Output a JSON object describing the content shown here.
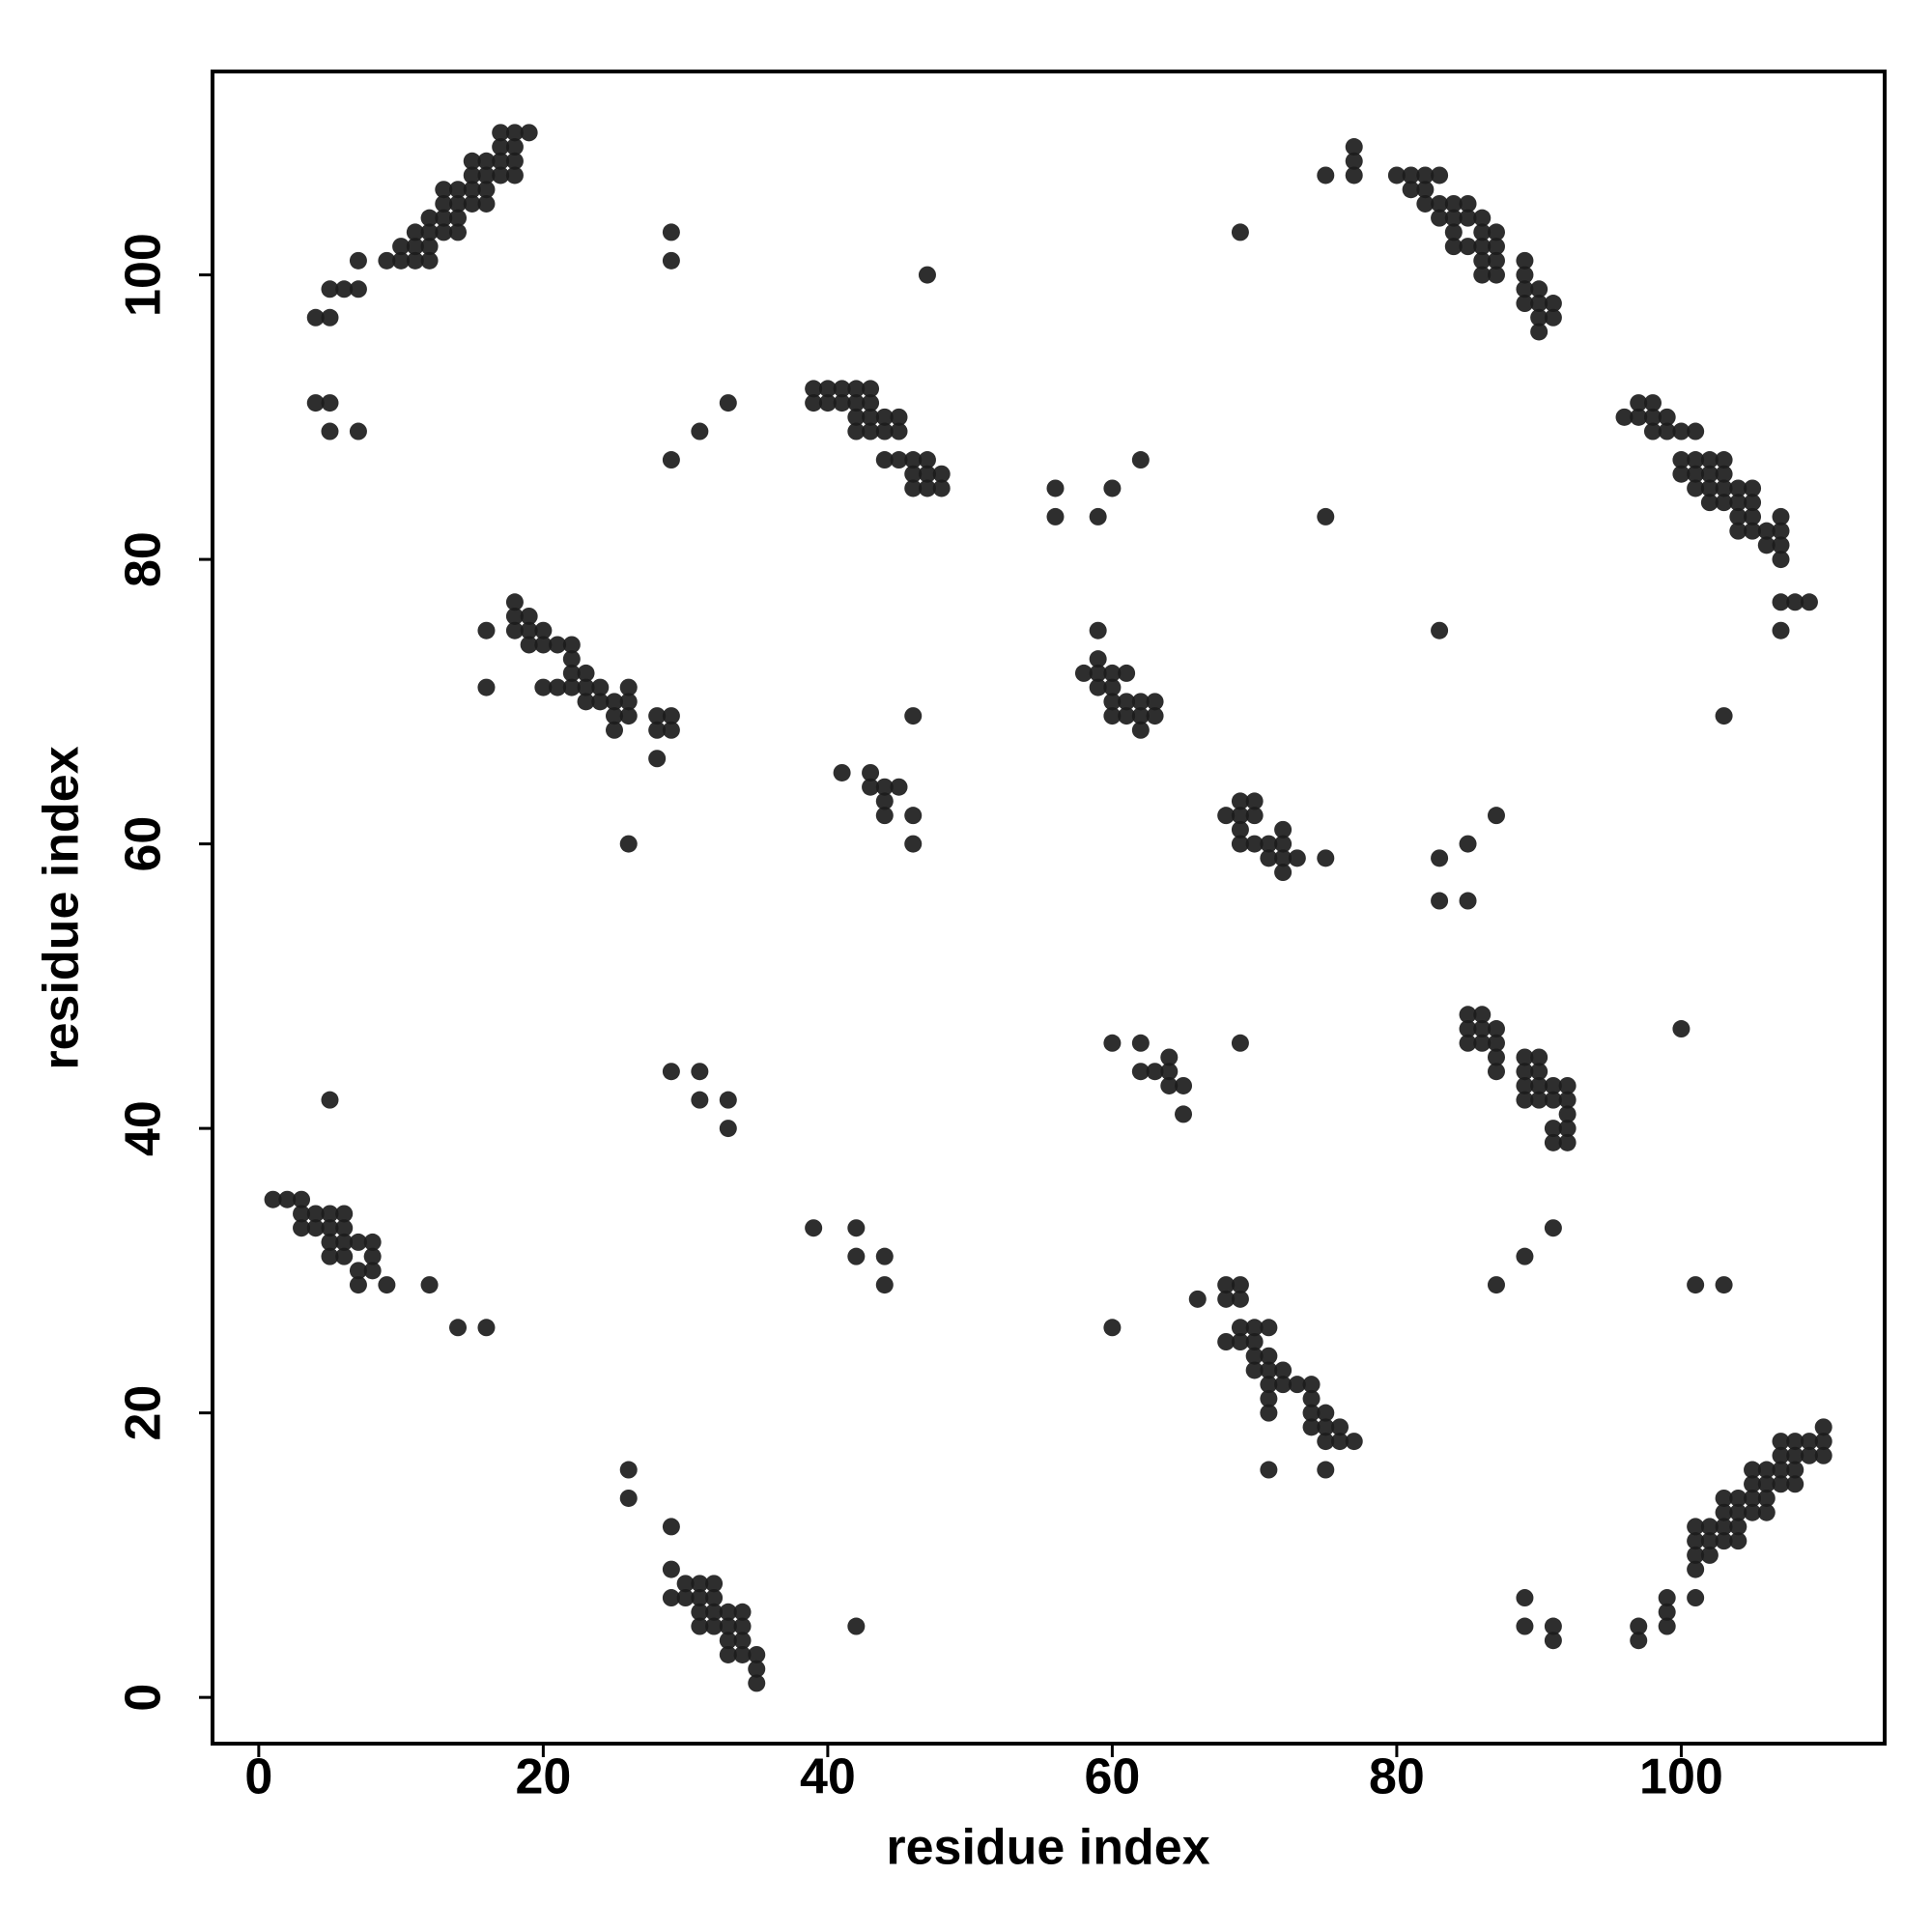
{
  "chart_data": {
    "type": "scatter",
    "x_label": "residue index",
    "y_label": "residue index",
    "xlim": [
      -3.25,
      114.3
    ],
    "ylim": [
      -3.25,
      114.3
    ],
    "xticks": [
      0,
      20,
      40,
      60,
      80,
      100
    ],
    "yticks": [
      0,
      20,
      40,
      60,
      80,
      100
    ],
    "color": "#1c1c1c",
    "grid": false,
    "x": [
      4,
      5,
      5,
      6,
      7,
      7,
      9,
      10,
      10,
      11,
      11,
      11,
      12,
      12,
      12,
      12,
      13,
      13,
      13,
      13,
      14,
      14,
      14,
      14,
      15,
      15,
      15,
      15,
      16,
      16,
      16,
      16,
      17,
      17,
      17,
      17,
      18,
      18,
      18,
      18,
      19,
      4,
      5,
      5,
      7,
      5,
      29,
      29,
      47,
      33,
      31,
      29,
      39,
      39,
      40,
      40,
      41,
      41,
      42,
      42,
      42,
      42,
      43,
      43,
      43,
      43,
      44,
      44,
      44,
      45,
      45,
      45,
      46,
      46,
      46,
      47,
      47,
      47,
      48,
      48,
      56,
      56,
      59,
      60,
      62,
      75,
      69,
      75,
      77,
      77,
      77,
      80,
      81,
      81,
      82,
      82,
      82,
      83,
      83,
      83,
      84,
      84,
      84,
      84,
      85,
      85,
      85,
      86,
      86,
      86,
      86,
      86,
      87,
      87,
      87,
      87,
      89,
      89,
      89,
      89,
      90,
      90,
      90,
      90,
      91,
      91,
      96,
      97,
      97,
      98,
      98,
      98,
      99,
      99,
      100,
      100,
      100,
      101,
      101,
      101,
      101,
      102,
      102,
      102,
      102,
      103,
      103,
      103,
      103,
      104,
      104,
      104,
      104,
      105,
      105,
      105,
      105,
      106,
      106,
      107,
      107,
      107,
      107,
      107,
      107,
      108,
      109,
      83,
      103,
      16,
      16,
      18,
      18,
      18,
      19,
      19,
      19,
      20,
      20,
      20,
      21,
      21,
      22,
      22,
      22,
      22,
      23,
      23,
      23,
      24,
      24,
      25,
      25,
      25,
      26,
      26,
      26,
      28,
      28,
      28,
      29,
      29,
      26,
      46,
      41,
      43,
      43,
      44,
      44,
      44,
      45,
      46,
      46,
      58,
      59,
      59,
      59,
      59,
      60,
      60,
      60,
      60,
      61,
      61,
      61,
      62,
      62,
      62,
      63,
      63,
      68,
      69,
      69,
      69,
      69,
      70,
      70,
      70,
      71,
      71,
      72,
      72,
      72,
      72,
      73,
      75,
      83,
      83,
      85,
      85,
      87,
      100,
      85,
      85,
      85,
      86,
      86,
      86,
      87,
      87,
      87,
      87,
      89,
      89,
      89,
      89,
      90,
      90,
      90,
      90,
      91,
      91,
      91,
      91,
      92,
      92,
      92,
      92,
      92,
      60,
      62,
      62,
      63,
      64,
      64,
      64,
      65,
      65,
      69,
      29,
      31,
      31,
      33,
      33,
      1,
      2,
      3,
      3,
      3,
      4,
      4,
      5,
      5,
      5,
      5,
      6,
      6,
      6,
      6,
      7,
      7,
      7,
      8,
      8,
      8,
      9,
      12,
      14,
      16,
      39,
      42,
      42,
      44,
      44,
      60,
      66,
      68,
      68,
      68,
      69,
      69,
      69,
      69,
      70,
      70,
      70,
      70,
      71,
      71,
      71,
      71,
      71,
      71,
      72,
      72,
      73,
      74,
      74,
      74,
      74,
      75,
      75,
      75,
      76,
      76,
      77,
      71,
      75,
      87,
      89,
      91,
      101,
      103,
      26,
      26,
      29,
      29,
      29,
      30,
      30,
      31,
      31,
      31,
      31,
      32,
      32,
      32,
      32,
      33,
      33,
      33,
      33,
      34,
      34,
      34,
      34,
      35,
      35,
      35,
      42,
      89,
      89,
      91,
      91,
      97,
      97,
      99,
      99,
      99,
      101,
      101,
      101,
      101,
      101,
      102,
      102,
      102,
      103,
      103,
      103,
      103,
      104,
      104,
      104,
      104,
      105,
      105,
      105,
      105,
      106,
      106,
      106,
      106,
      107,
      107,
      107,
      107,
      108,
      108,
      108,
      108,
      109,
      109,
      110,
      110,
      110
    ],
    "values": [
      97,
      97,
      99,
      99,
      99,
      101,
      101,
      101,
      102,
      101,
      102,
      103,
      101,
      102,
      103,
      104,
      103,
      104,
      105,
      106,
      103,
      104,
      105,
      106,
      105,
      106,
      107,
      108,
      105,
      106,
      107,
      108,
      107,
      108,
      109,
      110,
      107,
      108,
      109,
      110,
      110,
      91,
      91,
      89,
      89,
      42,
      103,
      101,
      100,
      91,
      89,
      87,
      92,
      91,
      92,
      91,
      92,
      91,
      92,
      91,
      90,
      89,
      92,
      91,
      90,
      89,
      90,
      89,
      87,
      90,
      89,
      87,
      87,
      86,
      85,
      87,
      86,
      85,
      86,
      85,
      85,
      83,
      83,
      85,
      87,
      83,
      103,
      107,
      109,
      108,
      107,
      107,
      107,
      106,
      107,
      106,
      105,
      107,
      105,
      104,
      105,
      104,
      103,
      102,
      105,
      104,
      102,
      104,
      103,
      102,
      101,
      100,
      103,
      102,
      101,
      100,
      101,
      100,
      99,
      98,
      99,
      98,
      97,
      96,
      98,
      97,
      90,
      91,
      90,
      91,
      90,
      89,
      90,
      89,
      89,
      87,
      86,
      89,
      87,
      86,
      85,
      87,
      86,
      85,
      84,
      87,
      86,
      85,
      84,
      85,
      84,
      83,
      82,
      85,
      84,
      83,
      82,
      82,
      81,
      83,
      82,
      81,
      80,
      77,
      75,
      77,
      77,
      75,
      69,
      75,
      71,
      77,
      76,
      75,
      76,
      75,
      74,
      75,
      74,
      71,
      74,
      71,
      74,
      73,
      72,
      71,
      72,
      71,
      70,
      71,
      70,
      70,
      69,
      68,
      71,
      70,
      69,
      69,
      68,
      66,
      69,
      68,
      60,
      69,
      65,
      65,
      64,
      64,
      63,
      62,
      64,
      62,
      60,
      72,
      75,
      73,
      72,
      71,
      72,
      71,
      70,
      69,
      72,
      70,
      69,
      70,
      69,
      68,
      70,
      69,
      62,
      63,
      62,
      61,
      60,
      63,
      62,
      60,
      60,
      59,
      61,
      60,
      59,
      58,
      59,
      59,
      59,
      56,
      60,
      56,
      62,
      47,
      48,
      47,
      46,
      48,
      47,
      46,
      47,
      46,
      45,
      44,
      45,
      44,
      43,
      42,
      45,
      44,
      43,
      42,
      43,
      42,
      40,
      39,
      43,
      42,
      41,
      40,
      39,
      46,
      46,
      44,
      44,
      45,
      44,
      43,
      43,
      41,
      46,
      44,
      44,
      42,
      42,
      40,
      35,
      35,
      35,
      34,
      33,
      34,
      33,
      34,
      33,
      32,
      31,
      34,
      33,
      32,
      31,
      32,
      30,
      29,
      32,
      31,
      30,
      29,
      29,
      26,
      26,
      33,
      33,
      31,
      31,
      29,
      26,
      28,
      29,
      28,
      25,
      29,
      28,
      26,
      25,
      26,
      25,
      24,
      23,
      26,
      24,
      23,
      22,
      21,
      20,
      23,
      22,
      22,
      22,
      21,
      20,
      19,
      20,
      19,
      18,
      19,
      18,
      18,
      16,
      16,
      29,
      31,
      33,
      29,
      29,
      16,
      14,
      12,
      9,
      7,
      8,
      7,
      8,
      7,
      6,
      5,
      8,
      7,
      6,
      5,
      6,
      5,
      4,
      3,
      6,
      5,
      4,
      3,
      3,
      2,
      1,
      5,
      7,
      5,
      5,
      4,
      5,
      4,
      7,
      6,
      5,
      12,
      11,
      10,
      9,
      7,
      12,
      11,
      10,
      14,
      13,
      12,
      11,
      14,
      13,
      12,
      11,
      16,
      15,
      14,
      13,
      16,
      15,
      14,
      13,
      18,
      17,
      16,
      15,
      18,
      17,
      16,
      15,
      18,
      17,
      19,
      18,
      17
    ]
  }
}
